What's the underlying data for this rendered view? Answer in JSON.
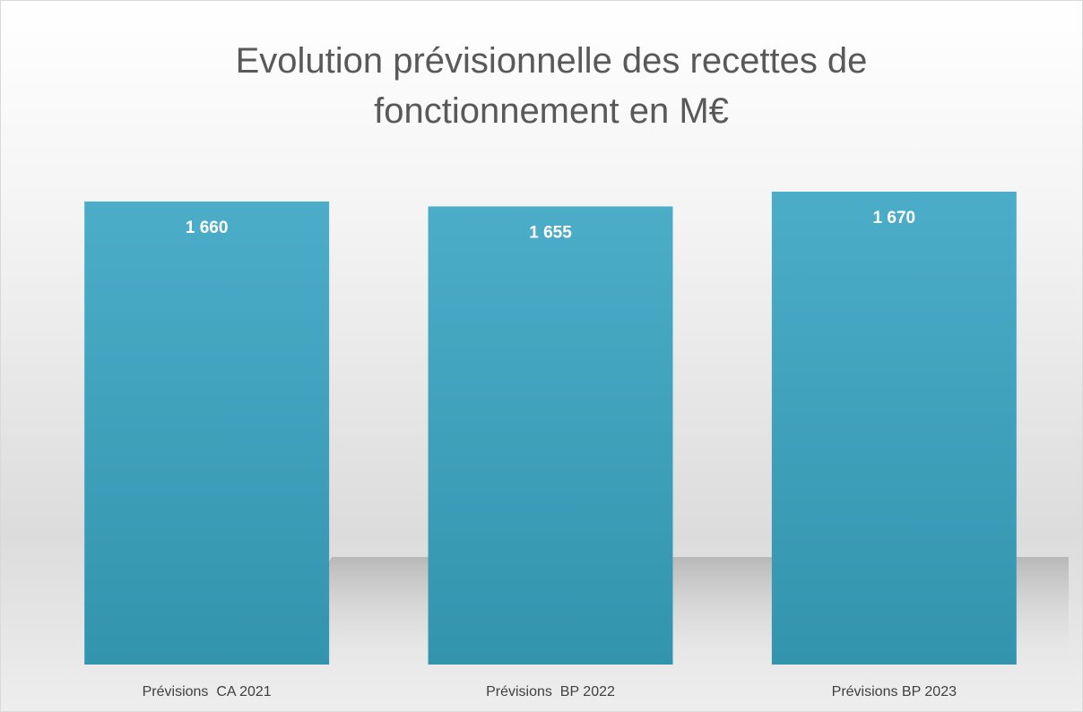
{
  "chart_data": {
    "type": "bar",
    "title": "Evolution prévisionnelle des recettes de fonctionnement en M€",
    "categories": [
      "Prévisions  CA 2021",
      "Prévisions  BP 2022",
      "Prévisions BP 2023"
    ],
    "values": [
      1660,
      1655,
      1670
    ],
    "value_labels": [
      "1 660",
      "1 655",
      "1 670"
    ],
    "color": "#4bacc6",
    "ylim": [
      1190,
      1700
    ]
  }
}
